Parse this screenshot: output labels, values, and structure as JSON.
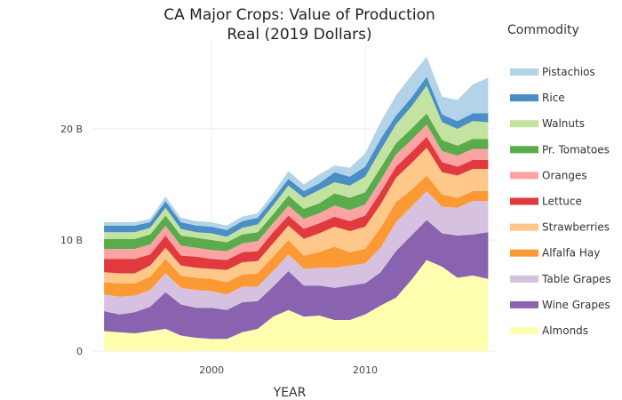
{
  "chart_data": {
    "type": "area",
    "title_line1": "CA Major Crops:  Value of Production",
    "title_line2": "Real (2019 Dollars)",
    "xlabel": "YEAR",
    "ylabel": "",
    "legend_title": "Commodity",
    "legend_position": "right",
    "grid": true,
    "x": [
      1993,
      1994,
      1995,
      1996,
      1997,
      1998,
      1999,
      2000,
      2001,
      2002,
      2003,
      2004,
      2005,
      2006,
      2007,
      2008,
      2009,
      2010,
      2011,
      2012,
      2013,
      2014,
      2015,
      2016,
      2017,
      2018
    ],
    "xlim": [
      1992.3,
      2018.5
    ],
    "ylim": [
      0,
      28
    ],
    "x_ticks": [
      {
        "value": 2000,
        "label": "2000"
      },
      {
        "value": 2010,
        "label": "2010"
      }
    ],
    "y_ticks": [
      {
        "value": 0,
        "label": "0"
      },
      {
        "value": 10,
        "label": "10 B"
      },
      {
        "value": 20,
        "label": "20 B"
      }
    ],
    "series": [
      {
        "name": "Almonds",
        "color": "#ffffb0",
        "values": [
          1.8,
          1.7,
          1.6,
          1.8,
          2.0,
          1.4,
          1.2,
          1.1,
          1.1,
          1.7,
          2.0,
          3.1,
          3.7,
          3.1,
          3.2,
          2.8,
          2.8,
          3.3,
          4.1,
          4.8,
          6.4,
          8.2,
          7.6,
          6.6,
          6.8,
          6.5
        ]
      },
      {
        "name": "Wine Grapes",
        "color": "#8a63b0",
        "values": [
          1.8,
          1.6,
          1.9,
          2.2,
          3.3,
          2.8,
          2.7,
          2.8,
          2.6,
          2.7,
          2.5,
          2.7,
          3.5,
          2.8,
          2.7,
          2.9,
          3.1,
          2.8,
          3.0,
          4.2,
          4.0,
          3.6,
          3.0,
          3.8,
          3.7,
          4.2
        ]
      },
      {
        "name": "Table Grapes",
        "color": "#d6c2e0",
        "values": [
          1.5,
          1.6,
          1.5,
          1.5,
          1.7,
          1.5,
          1.6,
          1.5,
          1.4,
          1.4,
          1.3,
          1.4,
          1.5,
          1.5,
          1.6,
          1.8,
          1.8,
          1.8,
          2.2,
          2.6,
          2.6,
          2.6,
          2.4,
          2.5,
          3.0,
          2.8
        ]
      },
      {
        "name": "Alfalfa Hay",
        "color": "#fb9a35",
        "values": [
          1.1,
          1.2,
          1.1,
          1.2,
          1.3,
          1.1,
          1.1,
          1.1,
          1.1,
          1.1,
          1.2,
          1.3,
          1.3,
          1.2,
          1.4,
          1.9,
          1.2,
          1.3,
          1.8,
          1.8,
          1.5,
          1.4,
          1.1,
          0.9,
          0.9,
          0.9
        ]
      },
      {
        "name": "Strawberries",
        "color": "#fdc88a",
        "values": [
          0.9,
          0.9,
          0.9,
          1.0,
          1.0,
          0.9,
          0.9,
          0.9,
          1.1,
          1.1,
          1.1,
          1.2,
          1.3,
          1.5,
          1.7,
          1.8,
          1.9,
          2.0,
          2.1,
          2.2,
          2.4,
          2.5,
          2.0,
          2.0,
          2.0,
          2.0
        ]
      },
      {
        "name": "Lettuce",
        "color": "#e0393e",
        "values": [
          1.2,
          1.3,
          1.3,
          1.0,
          1.1,
          0.9,
          1.0,
          0.9,
          0.9,
          0.9,
          0.9,
          1.0,
          0.9,
          0.9,
          0.9,
          0.9,
          0.9,
          1.0,
          1.1,
          1.0,
          1.0,
          1.0,
          0.9,
          0.8,
          0.8,
          0.8
        ]
      },
      {
        "name": "Oranges",
        "color": "#f9a3a3",
        "values": [
          0.9,
          0.9,
          0.9,
          0.9,
          0.9,
          0.9,
          0.8,
          0.8,
          0.8,
          0.8,
          0.9,
          0.8,
          0.9,
          0.9,
          0.9,
          1.0,
          1.0,
          1.0,
          1.1,
          1.1,
          1.1,
          1.1,
          1.0,
          1.0,
          1.0,
          1.0
        ]
      },
      {
        "name": "Pr. Tomatoes",
        "color": "#59ab4b",
        "values": [
          0.9,
          0.9,
          0.9,
          0.9,
          0.9,
          0.9,
          0.9,
          0.9,
          0.8,
          0.8,
          0.8,
          0.8,
          0.9,
          0.9,
          0.9,
          1.1,
          1.1,
          1.1,
          1.1,
          1.0,
          1.0,
          1.0,
          1.0,
          0.9,
          0.9,
          0.9
        ]
      },
      {
        "name": "Walnuts",
        "color": "#c4e3a1",
        "values": [
          0.6,
          0.6,
          0.6,
          0.6,
          0.7,
          0.6,
          0.5,
          0.6,
          0.5,
          0.6,
          0.7,
          0.8,
          0.9,
          1.0,
          1.2,
          1.0,
          1.1,
          1.4,
          1.6,
          1.7,
          2.0,
          2.5,
          1.6,
          1.5,
          1.6,
          1.5
        ]
      },
      {
        "name": "Rice",
        "color": "#4a8ec6",
        "values": [
          0.6,
          0.6,
          0.6,
          0.5,
          0.6,
          0.6,
          0.6,
          0.6,
          0.6,
          0.6,
          0.6,
          0.6,
          0.6,
          0.6,
          0.6,
          0.9,
          0.8,
          0.9,
          1.0,
          0.8,
          0.8,
          0.8,
          0.7,
          0.7,
          0.7,
          0.8
        ]
      },
      {
        "name": "Pistachios",
        "color": "#b3d3e8",
        "values": [
          0.3,
          0.3,
          0.3,
          0.3,
          0.4,
          0.4,
          0.4,
          0.4,
          0.4,
          0.4,
          0.4,
          0.5,
          0.7,
          0.6,
          0.8,
          0.6,
          0.8,
          1.2,
          1.5,
          1.8,
          2.0,
          1.8,
          1.6,
          1.9,
          2.6,
          3.2
        ]
      }
    ]
  }
}
